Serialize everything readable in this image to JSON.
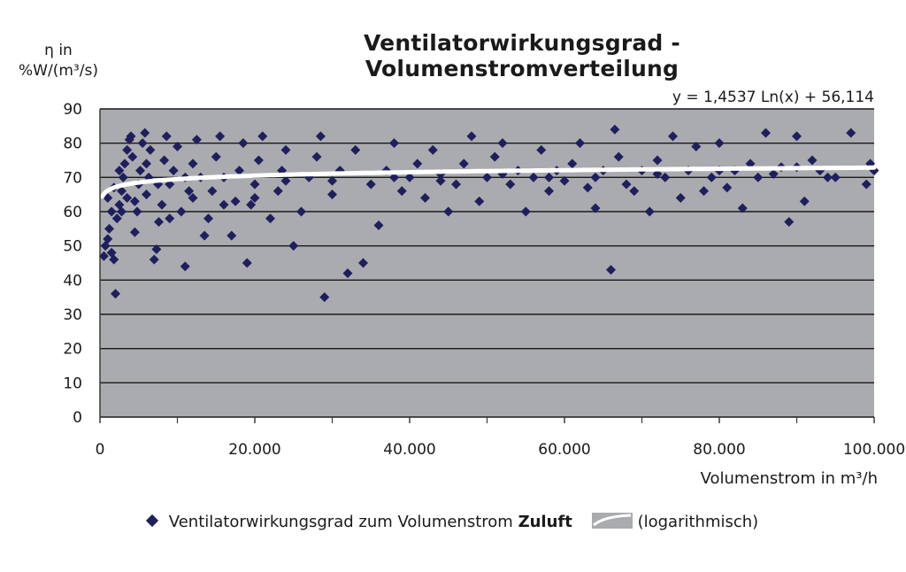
{
  "chart_data": {
    "type": "scatter",
    "title": "Ventilatorwirkungsgrad - Volumenstromverteilung",
    "ylabel_line1": "η in",
    "ylabel_line2": "%W/(m³/s)",
    "xlabel": "Volumenstrom in m³/h",
    "xlim": [
      0,
      100000
    ],
    "ylim": [
      0,
      90
    ],
    "x_ticks": [
      "0",
      "20.000",
      "40.000",
      "60.000",
      "80.000",
      "100.000"
    ],
    "y_ticks": [
      "0",
      "10",
      "20",
      "30",
      "40",
      "50",
      "60",
      "70",
      "80",
      "90"
    ],
    "grid": "horizontal",
    "legend_placement": "bottom",
    "series": [
      {
        "name": "Ventilatorwirkungsgrad zum Volumenstrom",
        "name_bold": "Zuluft",
        "color": "#1f1f5e",
        "points": [
          [
            500,
            47
          ],
          [
            700,
            50
          ],
          [
            1000,
            52
          ],
          [
            1200,
            55
          ],
          [
            1500,
            48
          ],
          [
            1800,
            46
          ],
          [
            2000,
            36
          ],
          [
            2200,
            58
          ],
          [
            2500,
            62
          ],
          [
            2800,
            66
          ],
          [
            3000,
            70
          ],
          [
            3200,
            74
          ],
          [
            3500,
            78
          ],
          [
            3800,
            81
          ],
          [
            4000,
            82
          ],
          [
            4200,
            76
          ],
          [
            4500,
            54
          ],
          [
            4800,
            60
          ],
          [
            5000,
            68
          ],
          [
            5200,
            72
          ],
          [
            5500,
            80
          ],
          [
            5800,
            83
          ],
          [
            6000,
            65
          ],
          [
            6300,
            70
          ],
          [
            6500,
            78
          ],
          [
            7000,
            46
          ],
          [
            7300,
            49
          ],
          [
            7600,
            57
          ],
          [
            8000,
            62
          ],
          [
            8300,
            75
          ],
          [
            8600,
            82
          ],
          [
            9000,
            68
          ],
          [
            9500,
            72
          ],
          [
            10000,
            79
          ],
          [
            10500,
            60
          ],
          [
            11000,
            44
          ],
          [
            11500,
            66
          ],
          [
            12000,
            74
          ],
          [
            12500,
            81
          ],
          [
            13000,
            70
          ],
          [
            13500,
            53
          ],
          [
            14000,
            58
          ],
          [
            14500,
            66
          ],
          [
            15000,
            76
          ],
          [
            15500,
            82
          ],
          [
            16000,
            70
          ],
          [
            17000,
            53
          ],
          [
            17500,
            63
          ],
          [
            18000,
            72
          ],
          [
            18500,
            80
          ],
          [
            19000,
            45
          ],
          [
            19500,
            62
          ],
          [
            20000,
            68
          ],
          [
            20500,
            75
          ],
          [
            21000,
            82
          ],
          [
            22000,
            58
          ],
          [
            23000,
            66
          ],
          [
            23500,
            72
          ],
          [
            24000,
            78
          ],
          [
            25000,
            50
          ],
          [
            26000,
            60
          ],
          [
            27000,
            70
          ],
          [
            28000,
            76
          ],
          [
            28500,
            82
          ],
          [
            29000,
            35
          ],
          [
            30000,
            65
          ],
          [
            31000,
            72
          ],
          [
            32000,
            42
          ],
          [
            33000,
            78
          ],
          [
            34000,
            45
          ],
          [
            35000,
            68
          ],
          [
            36000,
            56
          ],
          [
            37000,
            72
          ],
          [
            38000,
            80
          ],
          [
            39000,
            66
          ],
          [
            40000,
            70
          ],
          [
            41000,
            74
          ],
          [
            42000,
            64
          ],
          [
            43000,
            78
          ],
          [
            44000,
            71
          ],
          [
            45000,
            60
          ],
          [
            46000,
            68
          ],
          [
            47000,
            74
          ],
          [
            48000,
            82
          ],
          [
            49000,
            63
          ],
          [
            50000,
            70
          ],
          [
            51000,
            76
          ],
          [
            52000,
            80
          ],
          [
            53000,
            68
          ],
          [
            54000,
            72
          ],
          [
            55000,
            60
          ],
          [
            56000,
            70
          ],
          [
            57000,
            78
          ],
          [
            58000,
            66
          ],
          [
            59000,
            72
          ],
          [
            60000,
            69
          ],
          [
            61000,
            74
          ],
          [
            62000,
            80
          ],
          [
            63000,
            67
          ],
          [
            64000,
            61
          ],
          [
            65000,
            72
          ],
          [
            66000,
            43
          ],
          [
            66500,
            84
          ],
          [
            67000,
            76
          ],
          [
            68000,
            68
          ],
          [
            69000,
            66
          ],
          [
            70000,
            72
          ],
          [
            71000,
            60
          ],
          [
            72000,
            75
          ],
          [
            73000,
            70
          ],
          [
            74000,
            82
          ],
          [
            75000,
            64
          ],
          [
            76000,
            72
          ],
          [
            77000,
            79
          ],
          [
            78000,
            66
          ],
          [
            79000,
            70
          ],
          [
            80000,
            80
          ],
          [
            81000,
            67
          ],
          [
            82000,
            72
          ],
          [
            83000,
            61
          ],
          [
            84000,
            74
          ],
          [
            85000,
            70
          ],
          [
            86000,
            83
          ],
          [
            87000,
            71
          ],
          [
            88000,
            73
          ],
          [
            89000,
            57
          ],
          [
            90000,
            82
          ],
          [
            91000,
            63
          ],
          [
            92000,
            75
          ],
          [
            93000,
            72
          ],
          [
            94000,
            70
          ],
          [
            95000,
            70
          ],
          [
            97000,
            83
          ],
          [
            99000,
            68
          ],
          [
            99500,
            74
          ],
          [
            100000,
            72
          ],
          [
            1500,
            60
          ],
          [
            2500,
            72
          ],
          [
            3500,
            64
          ],
          [
            6000,
            74
          ],
          [
            9000,
            58
          ],
          [
            12000,
            64
          ],
          [
            16000,
            62
          ],
          [
            20000,
            64
          ],
          [
            24000,
            69
          ],
          [
            30000,
            69
          ],
          [
            38000,
            70
          ],
          [
            44000,
            69
          ],
          [
            52000,
            71
          ],
          [
            58000,
            70
          ],
          [
            64000,
            70
          ],
          [
            72000,
            71
          ],
          [
            80000,
            72
          ],
          [
            90000,
            73
          ],
          [
            1000,
            64
          ],
          [
            1800,
            67
          ],
          [
            2800,
            60
          ],
          [
            4500,
            63
          ],
          [
            7500,
            68
          ],
          [
            11000,
            70
          ]
        ]
      }
    ],
    "trendline": {
      "type": "logarithmic",
      "name": "(logarithmisch)",
      "equation": "y = 1,4537 Ln(x) + 56,114",
      "a": 1.4537,
      "b": 56.114,
      "color": "#ffffff"
    },
    "colors": {
      "plot_background": "#a9abaf",
      "grid": "#1a1a1a",
      "marker": "#1f1f5e",
      "trend": "#ffffff"
    }
  }
}
